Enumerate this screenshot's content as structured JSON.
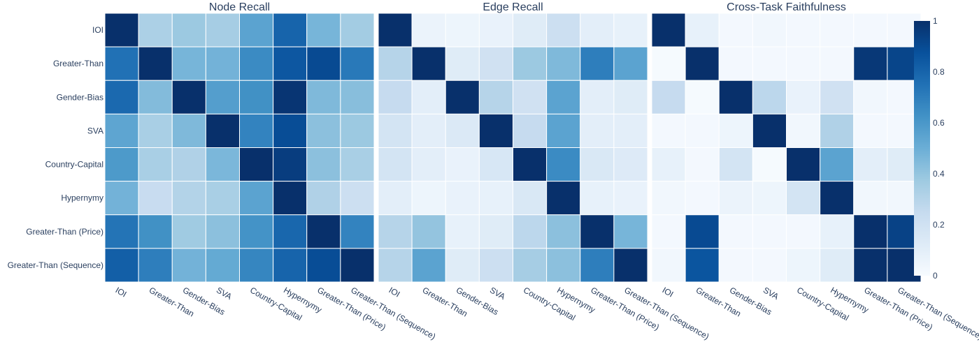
{
  "chart_data": {
    "type": "heatmap",
    "categories": [
      "IOI",
      "Greater-Than",
      "Gender-Bias",
      "SVA",
      "Country-Capital",
      "Hypernymy",
      "Greater-Than (Price)",
      "Greater-Than (Sequence)"
    ],
    "colorscale": [
      "#f7fbff",
      "#deebf7",
      "#c6dbef",
      "#9ecae1",
      "#6baed6",
      "#4292c6",
      "#2171b5",
      "#08519c",
      "#08306b"
    ],
    "zlim": [
      0,
      1
    ],
    "colorbar_ticks": [
      "0",
      "0.2",
      "0.4",
      "0.6",
      "0.8",
      "1"
    ],
    "panels": [
      {
        "title": "Node Recall",
        "values": [
          [
            1.0,
            0.33,
            0.38,
            0.35,
            0.55,
            0.8,
            0.47,
            0.36
          ],
          [
            0.75,
            1.0,
            0.47,
            0.48,
            0.65,
            0.85,
            0.9,
            0.72
          ],
          [
            0.78,
            0.44,
            1.0,
            0.57,
            0.63,
            0.98,
            0.45,
            0.43
          ],
          [
            0.54,
            0.34,
            0.45,
            1.0,
            0.68,
            0.89,
            0.42,
            0.38
          ],
          [
            0.59,
            0.34,
            0.32,
            0.46,
            1.0,
            0.95,
            0.42,
            0.34
          ],
          [
            0.48,
            0.24,
            0.31,
            0.34,
            0.55,
            1.0,
            0.32,
            0.22
          ],
          [
            0.74,
            0.63,
            0.37,
            0.42,
            0.62,
            0.79,
            1.0,
            0.68
          ],
          [
            0.82,
            0.7,
            0.48,
            0.52,
            0.67,
            0.8,
            0.89,
            1.0
          ]
        ]
      },
      {
        "title": "Edge Recall",
        "values": [
          [
            1.0,
            0.06,
            0.05,
            0.07,
            0.12,
            0.22,
            0.1,
            0.08
          ],
          [
            0.3,
            1.0,
            0.12,
            0.2,
            0.38,
            0.45,
            0.7,
            0.55
          ],
          [
            0.25,
            0.1,
            1.0,
            0.3,
            0.2,
            0.55,
            0.1,
            0.12
          ],
          [
            0.18,
            0.1,
            0.14,
            1.0,
            0.25,
            0.55,
            0.1,
            0.1
          ],
          [
            0.18,
            0.1,
            0.07,
            0.16,
            1.0,
            0.65,
            0.15,
            0.13
          ],
          [
            0.1,
            0.05,
            0.07,
            0.08,
            0.15,
            1.0,
            0.08,
            0.07
          ],
          [
            0.3,
            0.4,
            0.08,
            0.12,
            0.28,
            0.42,
            1.0,
            0.47
          ],
          [
            0.3,
            0.55,
            0.12,
            0.22,
            0.35,
            0.42,
            0.7,
            1.0
          ]
        ]
      },
      {
        "title": "Cross-Task Faithfulness",
        "values": [
          [
            1.0,
            0.08,
            0.02,
            0.03,
            0.02,
            0.02,
            0.02,
            0.02
          ],
          [
            0.01,
            1.0,
            0.02,
            0.02,
            0.02,
            0.02,
            0.97,
            0.92
          ],
          [
            0.25,
            0.01,
            1.0,
            0.28,
            0.07,
            0.2,
            0.03,
            0.02
          ],
          [
            0.02,
            0.02,
            0.05,
            1.0,
            0.03,
            0.32,
            0.02,
            0.02
          ],
          [
            0.08,
            0.02,
            0.18,
            0.01,
            1.0,
            0.55,
            0.1,
            0.12
          ],
          [
            0.03,
            0.02,
            0.06,
            0.05,
            0.18,
            1.0,
            0.03,
            0.03
          ],
          [
            0.02,
            0.9,
            0.02,
            0.02,
            0.02,
            0.08,
            1.0,
            0.93
          ],
          [
            0.03,
            0.86,
            0.02,
            0.02,
            0.05,
            0.12,
            1.0,
            1.0
          ]
        ]
      }
    ]
  }
}
